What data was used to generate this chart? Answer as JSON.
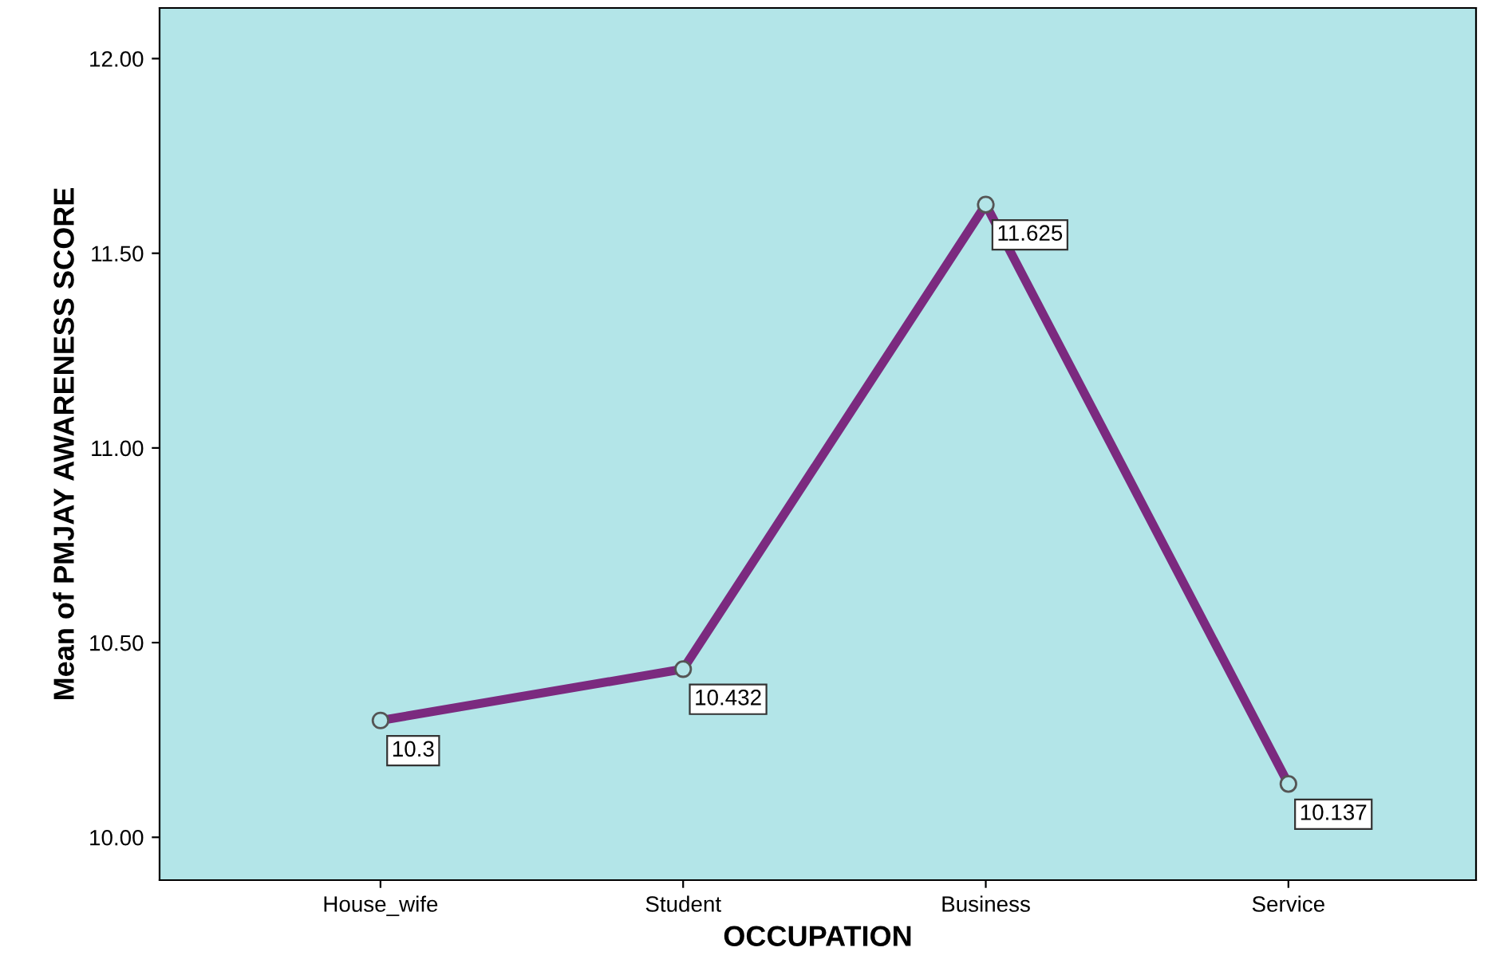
{
  "chart_data": {
    "type": "line",
    "xlabel": "OCCUPATION",
    "ylabel": "Mean of PMJAY AWARENESS SCORE",
    "categories": [
      "House_wife",
      "Student",
      "Business",
      "Service"
    ],
    "series": [
      {
        "color": "#7b2a7f",
        "values": [
          10.3,
          10.432,
          11.625,
          10.137
        ]
      }
    ],
    "ylim": [
      9.89,
      12.13
    ],
    "yticks": [
      {
        "value": 10,
        "label": "10.00"
      },
      {
        "value": 10.5,
        "label": "10.50"
      },
      {
        "value": 11,
        "label": "11.00"
      },
      {
        "value": 11.5,
        "label": "11.50"
      },
      {
        "value": 12,
        "label": "12.00"
      }
    ],
    "data_labels": true,
    "marker": "circle",
    "grid": false,
    "legend": false
  }
}
